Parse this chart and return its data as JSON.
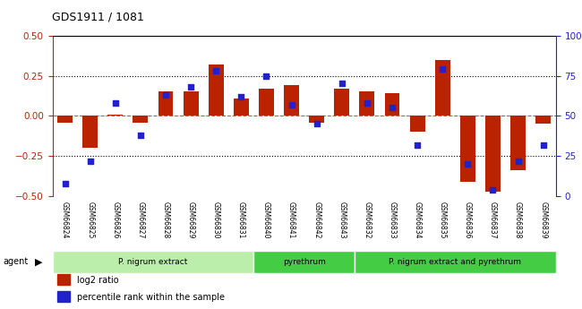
{
  "title": "GDS1911 / 1081",
  "samples": [
    "GSM66824",
    "GSM66825",
    "GSM66826",
    "GSM66827",
    "GSM66828",
    "GSM66829",
    "GSM66830",
    "GSM66831",
    "GSM66840",
    "GSM66841",
    "GSM66842",
    "GSM66843",
    "GSM66832",
    "GSM66833",
    "GSM66834",
    "GSM66835",
    "GSM66836",
    "GSM66837",
    "GSM66838",
    "GSM66839"
  ],
  "log2_ratio": [
    -0.04,
    -0.2,
    0.01,
    -0.04,
    0.15,
    0.15,
    0.32,
    0.11,
    0.17,
    0.19,
    -0.04,
    0.17,
    0.15,
    0.14,
    -0.1,
    0.35,
    -0.41,
    -0.47,
    -0.34,
    -0.05
  ],
  "percentile": [
    8,
    22,
    58,
    38,
    63,
    68,
    78,
    62,
    75,
    57,
    45,
    70,
    58,
    55,
    32,
    79,
    20,
    4,
    22,
    32
  ],
  "group_data": [
    {
      "start": 0,
      "end": 8,
      "label": "P. nigrum extract",
      "color": "#BBEEAA"
    },
    {
      "start": 8,
      "end": 12,
      "label": "pyrethrum",
      "color": "#44CC44"
    },
    {
      "start": 12,
      "end": 20,
      "label": "P. nigrum extract and pyrethrum",
      "color": "#44CC44"
    }
  ],
  "ylim_left": [
    -0.5,
    0.5
  ],
  "ylim_right": [
    0,
    100
  ],
  "yticks_left": [
    -0.5,
    -0.25,
    0,
    0.25,
    0.5
  ],
  "yticks_right": [
    0,
    25,
    50,
    75,
    100
  ],
  "bar_color": "#BB2200",
  "dot_color": "#2222CC",
  "legend_items": [
    {
      "label": "log2 ratio",
      "color": "#BB2200"
    },
    {
      "label": "percentile rank within the sample",
      "color": "#2222CC"
    }
  ]
}
